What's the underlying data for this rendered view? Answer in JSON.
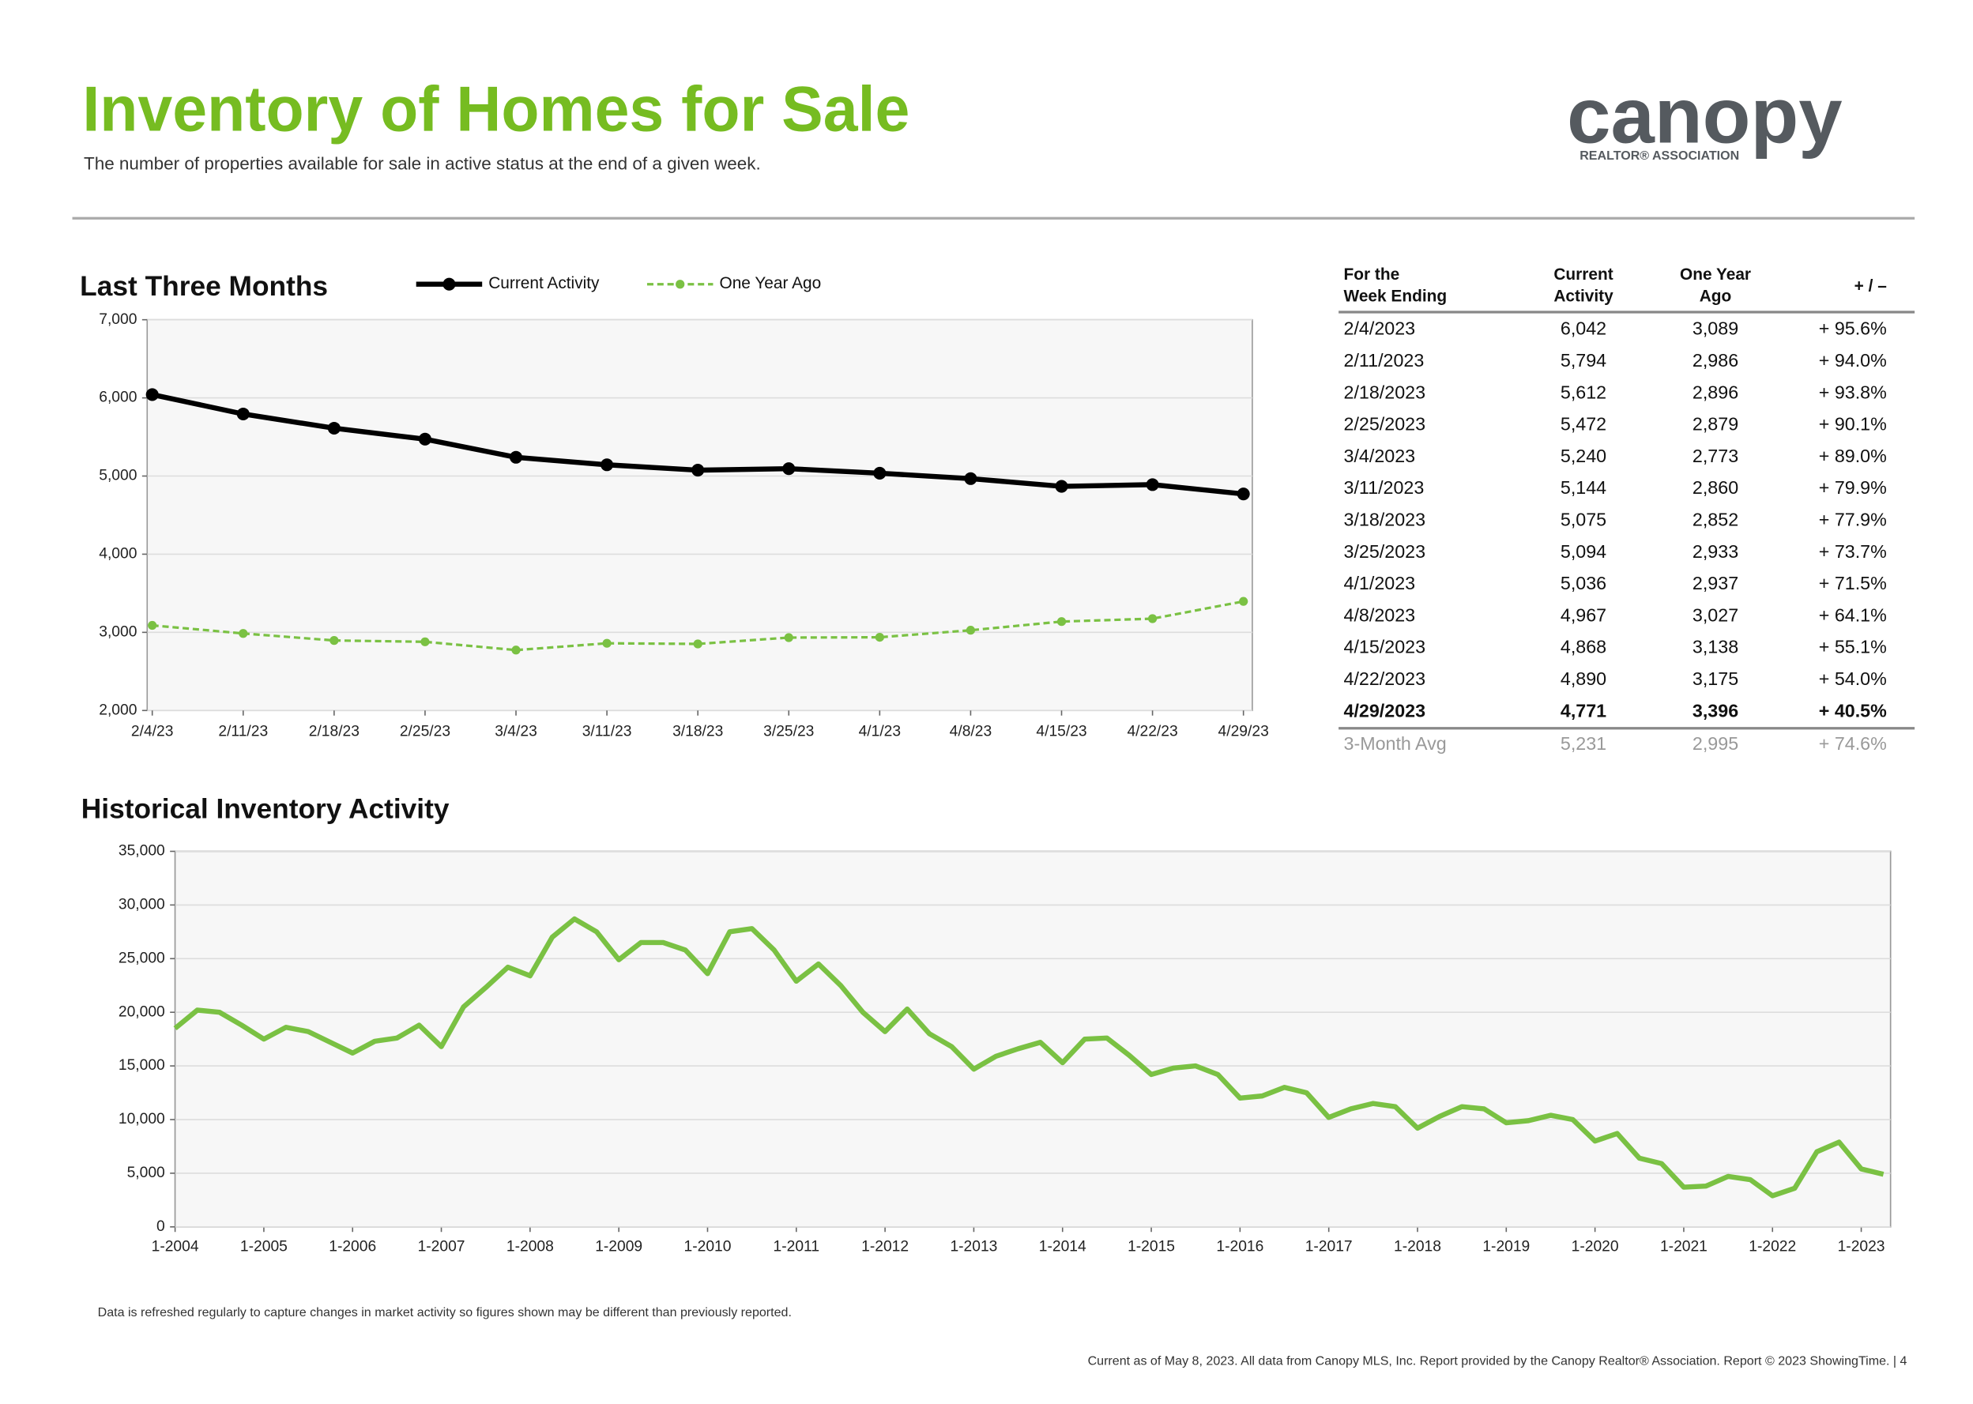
{
  "header": {
    "title": "Inventory of Homes for Sale",
    "subtitle": "The number of properties available for sale in active status at the end of a given week."
  },
  "logo": {
    "name": "canopy",
    "tagline": "REALTOR® ASSOCIATION"
  },
  "chart_data": [
    {
      "type": "line",
      "title": "Last Three Months",
      "categories": [
        "2/4/23",
        "2/11/23",
        "2/18/23",
        "2/25/23",
        "3/4/23",
        "3/11/23",
        "3/18/23",
        "3/25/23",
        "4/1/23",
        "4/8/23",
        "4/15/23",
        "4/22/23",
        "4/29/23"
      ],
      "series": [
        {
          "name": "Current Activity",
          "color": "#000000",
          "values": [
            6042,
            5794,
            5612,
            5472,
            5240,
            5144,
            5075,
            5094,
            5036,
            4967,
            4868,
            4890,
            4771
          ]
        },
        {
          "name": "One Year Ago",
          "color": "#7ac143",
          "dashed": true,
          "values": [
            3089,
            2986,
            2896,
            2879,
            2773,
            2860,
            2852,
            2933,
            2937,
            3027,
            3138,
            3175,
            3396
          ]
        }
      ],
      "ylim": [
        2000,
        7000
      ],
      "yticks": [
        {
          "value": 2000,
          "label": "2,000"
        },
        {
          "value": 3000,
          "label": "3,000"
        },
        {
          "value": 4000,
          "label": "4,000"
        },
        {
          "value": 5000,
          "label": "5,000"
        },
        {
          "value": 6000,
          "label": "6,000"
        },
        {
          "value": 7000,
          "label": "7,000"
        }
      ],
      "grid": true
    },
    {
      "type": "line",
      "title": "Historical Inventory Activity",
      "x": [
        2004,
        2004.25,
        2004.5,
        2004.75,
        2005,
        2005.25,
        2005.5,
        2005.75,
        2006,
        2006.25,
        2006.5,
        2006.75,
        2007,
        2007.25,
        2007.5,
        2007.75,
        2008,
        2008.25,
        2008.5,
        2008.75,
        2009,
        2009.25,
        2009.5,
        2009.75,
        2010,
        2010.25,
        2010.5,
        2010.75,
        2011,
        2011.25,
        2011.5,
        2011.75,
        2012,
        2012.25,
        2012.5,
        2012.75,
        2013,
        2013.25,
        2013.5,
        2013.75,
        2014,
        2014.25,
        2014.5,
        2014.75,
        2015,
        2015.25,
        2015.5,
        2015.75,
        2016,
        2016.25,
        2016.5,
        2016.75,
        2017,
        2017.25,
        2017.5,
        2017.75,
        2018,
        2018.25,
        2018.5,
        2018.75,
        2019,
        2019.25,
        2019.5,
        2019.75,
        2020,
        2020.25,
        2020.5,
        2020.75,
        2021,
        2021.25,
        2021.5,
        2021.75,
        2022,
        2022.25,
        2022.5,
        2022.75,
        2023,
        2023.25
      ],
      "series": [
        {
          "color": "#7ac143",
          "values": [
            18500,
            20200,
            20000,
            18800,
            17500,
            18600,
            18200,
            17200,
            16200,
            17300,
            17600,
            18800,
            16800,
            20500,
            22300,
            24200,
            23400,
            27000,
            28700,
            27500,
            24900,
            26500,
            26500,
            25800,
            23600,
            27500,
            27800,
            25800,
            22900,
            24500,
            22500,
            20000,
            18200,
            20300,
            18000,
            16800,
            14700,
            15900,
            16600,
            17200,
            15300,
            17500,
            17600,
            16000,
            14200,
            14800,
            15000,
            14200,
            12000,
            12200,
            13000,
            12500,
            10200,
            11000,
            11500,
            11200,
            9200,
            10300,
            11200,
            11000,
            9700,
            9900,
            10400,
            10000,
            8000,
            8700,
            6400,
            5900,
            3700,
            3800,
            4700,
            4400,
            2900,
            3600,
            7000,
            7900,
            5400,
            4900
          ]
        }
      ],
      "xlim": [
        2004,
        2023.33
      ],
      "xticks": [
        {
          "value": 2004,
          "label": "1-2004"
        },
        {
          "value": 2005,
          "label": "1-2005"
        },
        {
          "value": 2006,
          "label": "1-2006"
        },
        {
          "value": 2007,
          "label": "1-2007"
        },
        {
          "value": 2008,
          "label": "1-2008"
        },
        {
          "value": 2009,
          "label": "1-2009"
        },
        {
          "value": 2010,
          "label": "1-2010"
        },
        {
          "value": 2011,
          "label": "1-2011"
        },
        {
          "value": 2012,
          "label": "1-2012"
        },
        {
          "value": 2013,
          "label": "1-2013"
        },
        {
          "value": 2014,
          "label": "1-2014"
        },
        {
          "value": 2015,
          "label": "1-2015"
        },
        {
          "value": 2016,
          "label": "1-2016"
        },
        {
          "value": 2017,
          "label": "1-2017"
        },
        {
          "value": 2018,
          "label": "1-2018"
        },
        {
          "value": 2019,
          "label": "1-2019"
        },
        {
          "value": 2020,
          "label": "1-2020"
        },
        {
          "value": 2021,
          "label": "1-2021"
        },
        {
          "value": 2022,
          "label": "1-2022"
        },
        {
          "value": 2023,
          "label": "1-2023"
        }
      ],
      "ylim": [
        0,
        35000
      ],
      "yticks": [
        0,
        {
          "value": 5000,
          "label": "5,000"
        },
        {
          "value": 10000,
          "label": "10,000"
        },
        {
          "value": 15000,
          "label": "15,000"
        },
        {
          "value": 20000,
          "label": "20,000"
        },
        {
          "value": 25000,
          "label": "25,000"
        },
        {
          "value": 30000,
          "label": "30,000"
        },
        {
          "value": 35000,
          "label": "35,000"
        }
      ],
      "grid": true
    }
  ],
  "table": {
    "columns": [
      [
        "For the",
        "Week Ending"
      ],
      [
        "Current",
        "Activity"
      ],
      [
        "One Year",
        "Ago"
      ],
      [
        "+ / –"
      ]
    ],
    "rows": [
      [
        "2/4/2023",
        "6,042",
        "3,089",
        "+ 95.6%"
      ],
      [
        "2/11/2023",
        "5,794",
        "2,986",
        "+ 94.0%"
      ],
      [
        "2/18/2023",
        "5,612",
        "2,896",
        "+ 93.8%"
      ],
      [
        "2/25/2023",
        "5,472",
        "2,879",
        "+ 90.1%"
      ],
      [
        "3/4/2023",
        "5,240",
        "2,773",
        "+ 89.0%"
      ],
      [
        "3/11/2023",
        "5,144",
        "2,860",
        "+ 79.9%"
      ],
      [
        "3/18/2023",
        "5,075",
        "2,852",
        "+ 77.9%"
      ],
      [
        "3/25/2023",
        "5,094",
        "2,933",
        "+ 73.7%"
      ],
      [
        "4/1/2023",
        "5,036",
        "2,937",
        "+ 71.5%"
      ],
      [
        "4/8/2023",
        "4,967",
        "3,027",
        "+ 64.1%"
      ],
      [
        "4/15/2023",
        "4,868",
        "3,138",
        "+ 55.1%"
      ],
      [
        "4/22/2023",
        "4,890",
        "3,175",
        "+ 54.0%"
      ],
      [
        "4/29/2023",
        "4,771",
        "3,396",
        "+ 40.5%"
      ]
    ],
    "average": [
      "3-Month Avg",
      "5,231",
      "2,995",
      "+ 74.6%"
    ]
  },
  "note": "Data is refreshed regularly to capture changes in market activity so figures shown may be different than previously reported.",
  "footer": "Current as of May 8, 2023. All data from Canopy MLS, Inc. Report provided by the Canopy Realtor® Association. Report © 2023 ShowingTime.  |  4"
}
